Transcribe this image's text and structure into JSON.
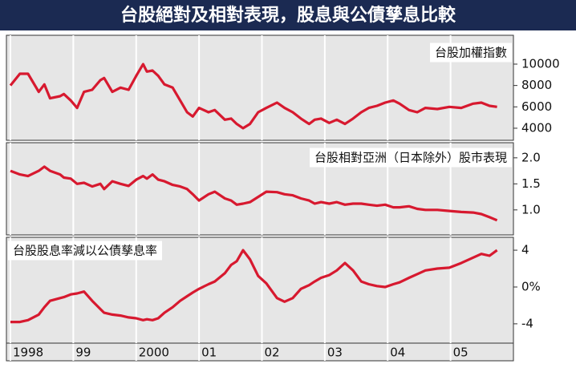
{
  "title": "台股絕對及相對表現，股息與公債孳息比較",
  "chart_data": [
    {
      "type": "line",
      "title": "台股加權指數",
      "x": [
        1998.0,
        1998.15,
        1998.28,
        1998.45,
        1998.54,
        1998.63,
        1998.79,
        1998.85,
        1998.96,
        1999.06,
        1999.17,
        1999.3,
        1999.43,
        1999.49,
        1999.62,
        1999.75,
        1999.88,
        2000.0,
        2000.11,
        2000.17,
        2000.26,
        2000.35,
        2000.45,
        2000.58,
        2000.7,
        2000.81,
        2000.9,
        2001.0,
        2001.15,
        2001.25,
        2001.41,
        2001.51,
        2001.6,
        2001.7,
        2001.81,
        2001.94,
        2002.07,
        2002.24,
        2002.36,
        2002.49,
        2002.62,
        2002.75,
        2002.84,
        2002.94,
        2003.07,
        2003.19,
        2003.32,
        2003.45,
        2003.58,
        2003.7,
        2003.83,
        2003.96,
        2004.09,
        2004.19,
        2004.34,
        2004.47,
        2004.6,
        2004.79,
        2004.98,
        2005.17,
        2005.36,
        2005.49,
        2005.62,
        2005.74
      ],
      "series": [
        {
          "color": "#d7192f",
          "values": [
            8000,
            9100,
            9100,
            7400,
            8100,
            6800,
            7000,
            7200,
            6600,
            5900,
            7400,
            7600,
            8500,
            8700,
            7400,
            7800,
            7600,
            8900,
            10000,
            9300,
            9400,
            8900,
            8100,
            7800,
            6600,
            5500,
            5100,
            5900,
            5500,
            5700,
            4800,
            4900,
            4400,
            4000,
            4400,
            5500,
            5900,
            6400,
            5900,
            5500,
            4900,
            4400,
            4800,
            4900,
            4500,
            4800,
            4400,
            4900,
            5500,
            5900,
            6100,
            6400,
            6600,
            6300,
            5700,
            5500,
            5900,
            5800,
            6000,
            5900,
            6300,
            6400,
            6100,
            6000
          ]
        }
      ],
      "ylim": [
        2870,
        12700
      ],
      "yticks": [
        4000,
        6000,
        8000,
        10000
      ],
      "grid": true
    },
    {
      "type": "line",
      "title": "台股相對亞洲（日本除外）股市表現",
      "x": [
        1998.0,
        1998.15,
        1998.28,
        1998.45,
        1998.54,
        1998.63,
        1998.79,
        1998.85,
        1998.96,
        1999.06,
        1999.17,
        1999.3,
        1999.43,
        1999.49,
        1999.62,
        1999.75,
        1999.88,
        2000.0,
        2000.11,
        2000.17,
        2000.26,
        2000.35,
        2000.45,
        2000.58,
        2000.7,
        2000.81,
        2000.9,
        2001.0,
        2001.15,
        2001.25,
        2001.41,
        2001.51,
        2001.6,
        2001.7,
        2001.81,
        2001.94,
        2002.07,
        2002.24,
        2002.36,
        2002.49,
        2002.62,
        2002.75,
        2002.84,
        2002.94,
        2003.07,
        2003.19,
        2003.32,
        2003.45,
        2003.58,
        2003.7,
        2003.83,
        2003.96,
        2004.09,
        2004.19,
        2004.34,
        2004.47,
        2004.6,
        2004.79,
        2004.98,
        2005.17,
        2005.36,
        2005.49,
        2005.62,
        2005.74
      ],
      "series": [
        {
          "color": "#d7192f",
          "values": [
            1.75,
            1.68,
            1.65,
            1.75,
            1.83,
            1.75,
            1.68,
            1.62,
            1.6,
            1.5,
            1.52,
            1.45,
            1.5,
            1.4,
            1.55,
            1.5,
            1.46,
            1.58,
            1.65,
            1.6,
            1.68,
            1.58,
            1.55,
            1.48,
            1.45,
            1.4,
            1.3,
            1.18,
            1.3,
            1.35,
            1.22,
            1.18,
            1.1,
            1.12,
            1.15,
            1.25,
            1.35,
            1.34,
            1.3,
            1.28,
            1.22,
            1.18,
            1.12,
            1.15,
            1.12,
            1.15,
            1.1,
            1.12,
            1.12,
            1.1,
            1.08,
            1.1,
            1.05,
            1.05,
            1.07,
            1.02,
            1.0,
            1.0,
            0.98,
            0.96,
            0.95,
            0.92,
            0.86,
            0.8
          ]
        }
      ],
      "ylim": [
        0.52,
        2.29
      ],
      "yticks": [
        {
          "value": 1,
          "label": "1.0"
        },
        1.5,
        {
          "value": 2,
          "label": "2.0"
        }
      ],
      "grid": true
    },
    {
      "type": "line",
      "title": "台股股息率減以公債孳息率",
      "x": [
        1998.0,
        1998.15,
        1998.28,
        1998.45,
        1998.54,
        1998.63,
        1998.79,
        1998.85,
        1998.96,
        1999.06,
        1999.17,
        1999.3,
        1999.43,
        1999.49,
        1999.62,
        1999.75,
        1999.88,
        2000.0,
        2000.11,
        2000.17,
        2000.26,
        2000.35,
        2000.45,
        2000.58,
        2000.7,
        2000.81,
        2000.9,
        2001.0,
        2001.15,
        2001.25,
        2001.41,
        2001.51,
        2001.6,
        2001.7,
        2001.81,
        2001.94,
        2002.07,
        2002.24,
        2002.36,
        2002.49,
        2002.62,
        2002.75,
        2002.84,
        2002.94,
        2003.07,
        2003.19,
        2003.32,
        2003.45,
        2003.58,
        2003.7,
        2003.83,
        2003.96,
        2004.09,
        2004.19,
        2004.34,
        2004.47,
        2004.6,
        2004.79,
        2004.98,
        2005.17,
        2005.36,
        2005.49,
        2005.62,
        2005.74
      ],
      "series": [
        {
          "color": "#d7192f",
          "values": [
            -3.8,
            -3.8,
            -3.6,
            -3.0,
            -2.2,
            -1.5,
            -1.2,
            -1.1,
            -0.8,
            -0.7,
            -0.5,
            -1.5,
            -2.4,
            -2.8,
            -3.0,
            -3.1,
            -3.3,
            -3.4,
            -3.6,
            -3.5,
            -3.6,
            -3.4,
            -2.8,
            -2.2,
            -1.5,
            -1.0,
            -0.6,
            -0.2,
            0.3,
            0.6,
            1.5,
            2.4,
            2.8,
            4.0,
            3.0,
            1.2,
            0.4,
            -1.2,
            -1.6,
            -1.2,
            -0.2,
            0.2,
            0.6,
            1.0,
            1.3,
            1.8,
            2.6,
            1.8,
            0.6,
            0.3,
            0.1,
            0.0,
            0.3,
            0.5,
            1.0,
            1.4,
            1.8,
            2.0,
            2.1,
            2.6,
            3.2,
            3.6,
            3.4,
            4.0
          ]
        }
      ],
      "ylim": [
        -6.1,
        5.4
      ],
      "yticks": [
        -4,
        {
          "value": 0,
          "label": "0%"
        },
        4
      ],
      "grid": true,
      "xlim": [
        1998,
        2006
      ],
      "xticks": [
        1998,
        {
          "value": 1999,
          "label": "99"
        },
        2000,
        {
          "value": 2001,
          "label": "01"
        },
        {
          "value": 2002,
          "label": "02"
        },
        {
          "value": 2003,
          "label": "03"
        },
        {
          "value": 2004,
          "label": "04"
        },
        {
          "value": 2005,
          "label": "05"
        }
      ]
    }
  ]
}
